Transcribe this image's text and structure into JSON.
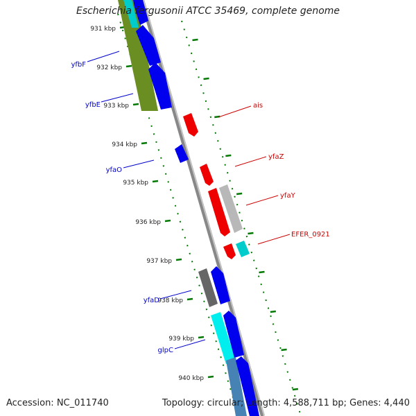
{
  "title": "Escherichia fergusonii ATCC 35469, complete genome",
  "footer": {
    "accession": "Accession: NC_011740",
    "topology": "Topology: circular; Length: 4,588,711 bp; Genes: 4,440"
  },
  "ticks": [
    "931 kbp",
    "932 kbp",
    "933 kbp",
    "934 kbp",
    "935 kbp",
    "936 kbp",
    "937 kbp",
    "938 kbp",
    "939 kbp",
    "940 kbp"
  ],
  "gene_labels": [
    {
      "name": "yfbF",
      "color": "#0000cc"
    },
    {
      "name": "yfbE",
      "color": "#0000cc"
    },
    {
      "name": "yfaO",
      "color": "#0000cc"
    },
    {
      "name": "yfaD",
      "color": "#0000cc"
    },
    {
      "name": "glpC",
      "color": "#0000cc"
    },
    {
      "name": "ais",
      "color": "#cc0000"
    },
    {
      "name": "yfaZ",
      "color": "#cc0000"
    },
    {
      "name": "yfaY",
      "color": "#cc0000"
    },
    {
      "name": "EFER_0921",
      "color": "#cc0000"
    }
  ],
  "colors": {
    "backbone": "#888888",
    "forward_gene": "#0000ee",
    "reverse_gene": "#ee0000",
    "tick": "#007700",
    "olive": "#6b8e23",
    "cyan": "#00cccc",
    "gray_feature": "#666666",
    "silver_feature": "#b8b8b8",
    "steel": "#4682b4"
  }
}
